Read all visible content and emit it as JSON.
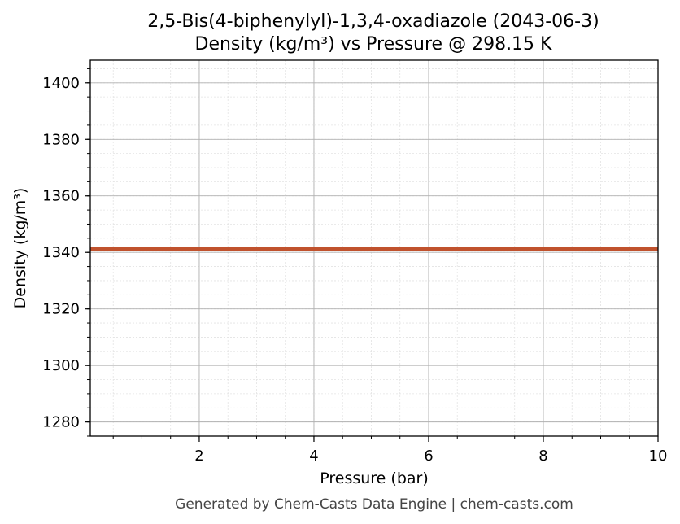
{
  "chart_data": {
    "type": "line",
    "title": "2,5-Bis(4-biphenylyl)-1,3,4-oxadiazole (2043-06-3)",
    "subtitle": "Density (kg/m³) vs Pressure @ 298.15 K",
    "xlabel": "Pressure (bar)",
    "ylabel": "Density (kg/m³)",
    "xlim": [
      0.1,
      10
    ],
    "ylim": [
      1275,
      1408
    ],
    "x_ticks": [
      2,
      4,
      6,
      8,
      10
    ],
    "y_ticks": [
      1280,
      1300,
      1320,
      1340,
      1360,
      1380,
      1400
    ],
    "x_minor_step": 0.5,
    "y_minor_step": 5,
    "grid": true,
    "series": [
      {
        "color": "#c0522d",
        "x": [
          0.1,
          10
        ],
        "y": [
          1341.2,
          1341.2
        ]
      }
    ]
  },
  "footer": "Generated by Chem-Casts Data Engine | chem-casts.com"
}
